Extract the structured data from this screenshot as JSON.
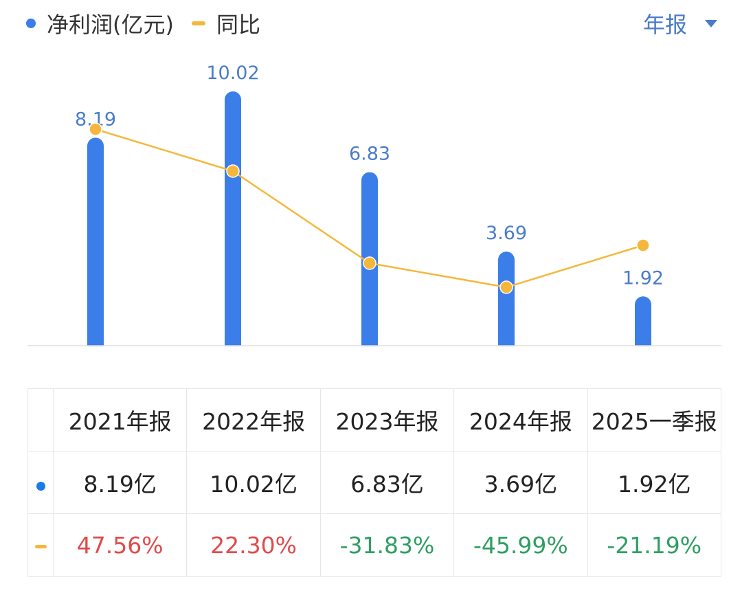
{
  "legend": {
    "bar_label": "净利润(亿元)",
    "line_label": "同比"
  },
  "period_selector": {
    "label": "年报"
  },
  "colors": {
    "bar": "#3b7ee9",
    "line": "#f5b73b",
    "label_blue": "#4a7cc9",
    "selector": "#4a7cc9",
    "positive": "#e04b4b",
    "negative": "#2e9e62",
    "axis": "#e3e3e3"
  },
  "chart_data": {
    "type": "bar",
    "categories": [
      "2021年报",
      "2022年报",
      "2023年报",
      "2024年报",
      "2025一季报"
    ],
    "series": [
      {
        "name": "净利润(亿元)",
        "type": "bar",
        "values": [
          8.19,
          10.02,
          6.83,
          3.69,
          1.92
        ],
        "data_labels": [
          "8.19",
          "10.02",
          "6.83",
          "3.69",
          "1.92"
        ]
      },
      {
        "name": "同比",
        "type": "line",
        "values": [
          47.56,
          22.3,
          -31.83,
          -45.99,
          -21.19
        ]
      }
    ],
    "ylim": [
      0,
      10.02
    ],
    "y2lim": [
      -65,
      65
    ],
    "grid": false,
    "legend_position": "top-left"
  },
  "table": {
    "headers": [
      "2021年报",
      "2022年报",
      "2023年报",
      "2024年报",
      "2025一季报"
    ],
    "rows": [
      {
        "marker": "bar",
        "cells": [
          "8.19亿",
          "10.02亿",
          "6.83亿",
          "3.69亿",
          "1.92亿"
        ]
      },
      {
        "marker": "line",
        "cells": [
          "47.56%",
          "22.30%",
          "-31.83%",
          "-45.99%",
          "-21.19%"
        ],
        "signs": [
          "positive",
          "positive",
          "negative",
          "negative",
          "negative"
        ]
      }
    ]
  }
}
